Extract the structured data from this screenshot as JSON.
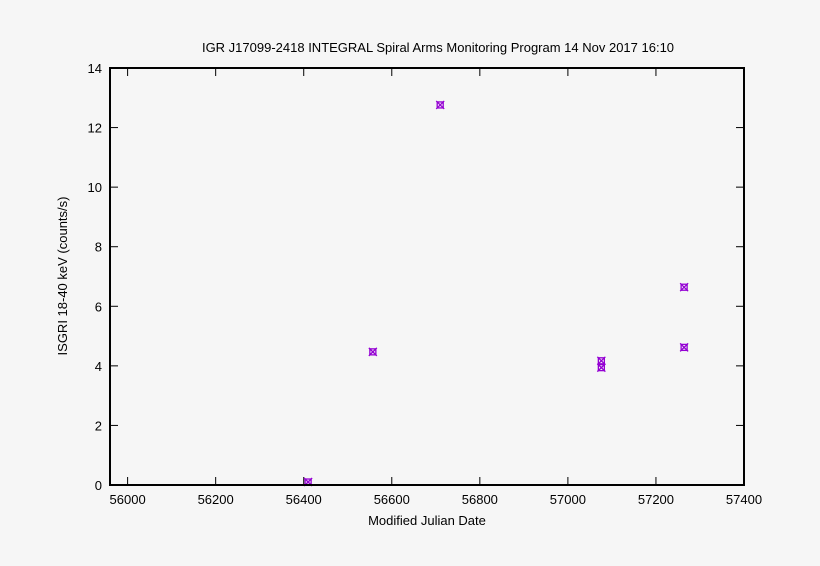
{
  "chart_data": {
    "type": "scatter",
    "title": "IGR J17099-2418   INTEGRAL Spiral Arms Monitoring Program  14 Nov 2017 16:10",
    "xlabel": "Modified Julian Date",
    "ylabel": "ISGRI 18-40 keV (counts/s)",
    "xlim": [
      55960,
      57400
    ],
    "ylim": [
      0,
      14
    ],
    "xticks": [
      56000,
      56200,
      56400,
      56600,
      56800,
      57000,
      57200,
      57400
    ],
    "yticks": [
      0,
      2,
      4,
      6,
      8,
      10,
      12,
      14
    ],
    "grid": false,
    "marker": "x-square",
    "color": "#9400d3",
    "points": [
      {
        "x": 56410,
        "y": 0.1
      },
      {
        "x": 56557,
        "y": 4.47
      },
      {
        "x": 56710,
        "y": 12.76
      },
      {
        "x": 57076,
        "y": 4.17
      },
      {
        "x": 57076,
        "y": 3.94
      },
      {
        "x": 57264,
        "y": 6.64
      },
      {
        "x": 57264,
        "y": 4.62
      }
    ]
  }
}
